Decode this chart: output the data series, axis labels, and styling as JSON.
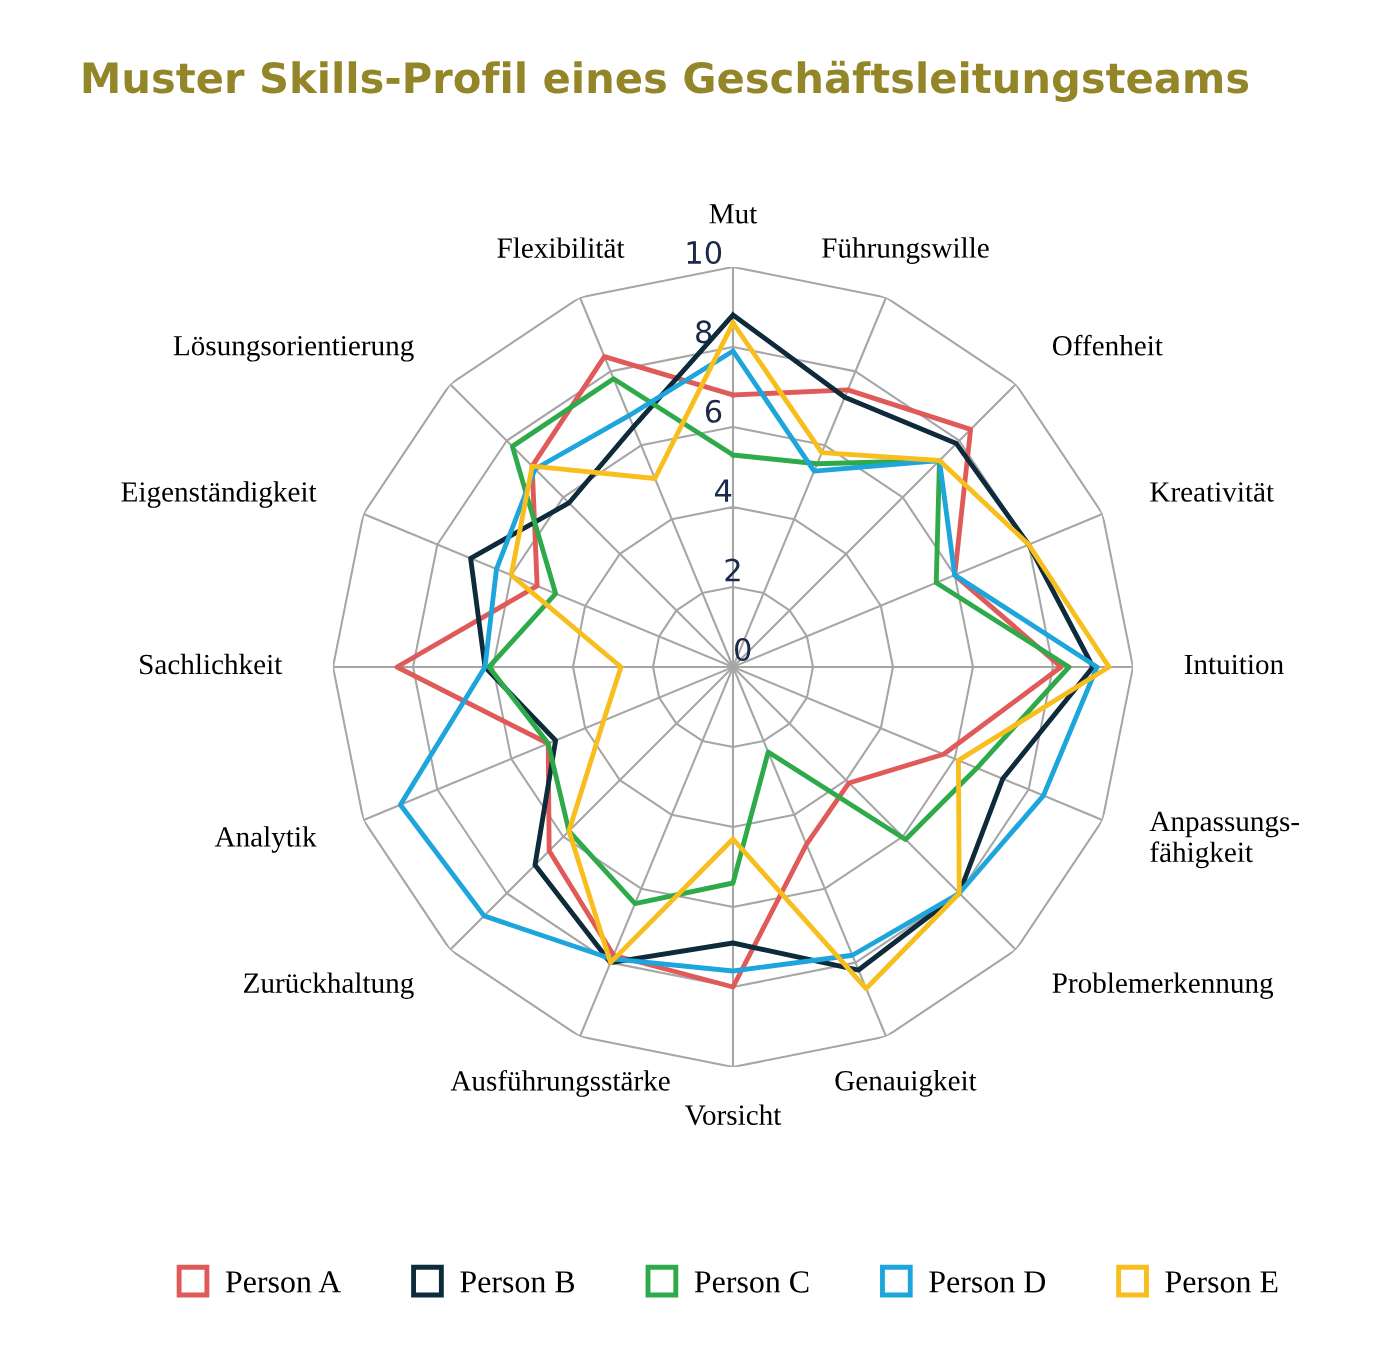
{
  "chart_data": {
    "type": "radar",
    "title": "Muster Skills-Profil eines Geschäftsleitungsteams",
    "categories": [
      "Mut",
      "Führungswille",
      "Offenheit",
      "Kreativität",
      "Intuition",
      "Anpassungs-\nfähigkeit",
      "Problemerkennung",
      "Genauigkeit",
      "Vorsicht",
      "Ausführungsstärke",
      "Zurückhaltung",
      "Analytik",
      "Sachlichkeit",
      "Eigenständigkeit",
      "Lösungsorientierung",
      "Flexibilität"
    ],
    "ylim": [
      0,
      10
    ],
    "yticks": [
      0,
      2,
      4,
      6,
      8,
      10
    ],
    "grid": true,
    "legend": "bottom",
    "marker": "none",
    "line_style": "solid",
    "series": [
      {
        "name": "Person A",
        "color": "#e05a5a",
        "values": [
          6.8,
          7.5,
          8.4,
          6.0,
          8.2,
          5.7,
          4.1,
          4.8,
          8.0,
          7.8,
          6.5,
          5.0,
          8.4,
          5.3,
          7.1,
          8.4
        ]
      },
      {
        "name": "Person B",
        "color": "#0d2b3a",
        "values": [
          8.8,
          7.3,
          7.9,
          8.0,
          9.0,
          7.3,
          8.0,
          8.2,
          6.9,
          8.0,
          7.0,
          4.8,
          6.2,
          7.1,
          5.8,
          6.5
        ]
      },
      {
        "name": "Person C",
        "color": "#2eaa4a",
        "values": [
          5.3,
          5.5,
          7.3,
          5.5,
          8.4,
          6.6,
          6.1,
          2.3,
          5.4,
          6.4,
          5.8,
          5.0,
          6.1,
          4.8,
          7.8,
          7.8
        ]
      },
      {
        "name": "Person D",
        "color": "#1ea5dc",
        "values": [
          7.9,
          5.3,
          7.3,
          6.0,
          9.1,
          8.4,
          8.0,
          7.8,
          7.6,
          7.9,
          8.8,
          9.0,
          6.2,
          6.4,
          7.0,
          6.8
        ]
      },
      {
        "name": "Person E",
        "color": "#f8be1e",
        "values": [
          8.6,
          5.8,
          7.3,
          8.0,
          9.4,
          6.1,
          8.0,
          8.7,
          4.3,
          8.0,
          5.8,
          3.5,
          2.8,
          6.0,
          7.1,
          5.1
        ]
      }
    ]
  }
}
